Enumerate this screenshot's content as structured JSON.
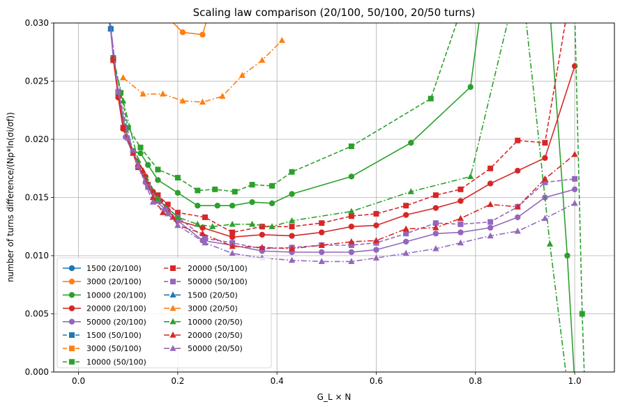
{
  "chart_data": {
    "type": "line",
    "title": "Scaling law comparison (20/100, 50/100, 20/50 turns)",
    "xlabel": "G_L × N",
    "ylabel": "number of turns difference/(Np*ln(σi/σf))",
    "xlim": [
      -0.05,
      1.08
    ],
    "ylim": [
      0,
      0.03
    ],
    "xticks": [
      "0.0",
      "0.2",
      "0.4",
      "0.6",
      "0.8",
      "1.0"
    ],
    "yticks": [
      "0.000",
      "0.005",
      "0.010",
      "0.015",
      "0.020",
      "0.025",
      "0.030"
    ],
    "grid": true,
    "legend_position": "lower-left",
    "series": [
      {
        "name": "1500 (20/100)",
        "color": "#1f77b4",
        "linestyle": "solid",
        "marker": "circle",
        "x": [
          0.055,
          0.065
        ],
        "y": [
          0.0315,
          0.0295
        ]
      },
      {
        "name": "3000 (20/100)",
        "color": "#ff7f0e",
        "linestyle": "solid",
        "marker": "circle",
        "x": [
          0.155,
          0.21,
          0.25,
          0.26
        ],
        "y": [
          0.0315,
          0.0292,
          0.029,
          0.0305
        ]
      },
      {
        "name": "10000 (20/100)",
        "color": "#2ca02c",
        "linestyle": "solid",
        "marker": "circle",
        "x": [
          0.07,
          0.08,
          0.095,
          0.11,
          0.125,
          0.14,
          0.16,
          0.2,
          0.24,
          0.28,
          0.31,
          0.35,
          0.39,
          0.43,
          0.55,
          0.67,
          0.79,
          0.81,
          0.95,
          0.985,
          1.0
        ],
        "y": [
          0.027,
          0.0238,
          0.0208,
          0.019,
          0.0188,
          0.0178,
          0.0165,
          0.0154,
          0.0143,
          0.0143,
          0.0143,
          0.0146,
          0.0145,
          0.0153,
          0.0168,
          0.0197,
          0.0245,
          0.031,
          0.031,
          0.01,
          -0.001
        ]
      },
      {
        "name": "20000 (20/100)",
        "color": "#d62728",
        "linestyle": "solid",
        "marker": "circle",
        "x": [
          0.07,
          0.08,
          0.09,
          0.11,
          0.12,
          0.135,
          0.15,
          0.165,
          0.18,
          0.2,
          0.25,
          0.31,
          0.37,
          0.43,
          0.49,
          0.55,
          0.6,
          0.66,
          0.72,
          0.77,
          0.83,
          0.885,
          0.94,
          1.0
        ],
        "y": [
          0.027,
          0.0236,
          0.0209,
          0.0189,
          0.0176,
          0.0168,
          0.0155,
          0.0147,
          0.0139,
          0.013,
          0.0124,
          0.0116,
          0.0118,
          0.0117,
          0.012,
          0.0125,
          0.0126,
          0.0135,
          0.0141,
          0.0147,
          0.0162,
          0.0173,
          0.0184,
          0.0263
        ]
      },
      {
        "name": "50000 (20/100)",
        "color": "#9467bd",
        "linestyle": "solid",
        "marker": "circle",
        "x": [
          0.06,
          0.07,
          0.08,
          0.095,
          0.12,
          0.135,
          0.155,
          0.175,
          0.2,
          0.25,
          0.31,
          0.37,
          0.43,
          0.49,
          0.55,
          0.6,
          0.66,
          0.72,
          0.77,
          0.83,
          0.885,
          0.94,
          1.0
        ],
        "y": [
          0.0315,
          0.027,
          0.0241,
          0.0202,
          0.0177,
          0.0163,
          0.0147,
          0.014,
          0.013,
          0.0113,
          0.0109,
          0.0104,
          0.0103,
          0.0103,
          0.0103,
          0.0105,
          0.0112,
          0.0119,
          0.012,
          0.0124,
          0.0133,
          0.015,
          0.0157
        ]
      },
      {
        "name": "1500 (50/100)",
        "color": "#1f77b4",
        "linestyle": "dashed",
        "marker": "square",
        "x": [
          0.055,
          0.065
        ],
        "y": [
          0.0315,
          0.0295
        ]
      },
      {
        "name": "3000 (50/100)",
        "color": "#ff7f0e",
        "linestyle": "dashed",
        "marker": "square",
        "x": [],
        "y": []
      },
      {
        "name": "10000 (50/100)",
        "color": "#2ca02c",
        "linestyle": "dashed",
        "marker": "square",
        "x": [
          0.07,
          0.085,
          0.1,
          0.125,
          0.16,
          0.2,
          0.24,
          0.275,
          0.315,
          0.35,
          0.39,
          0.43,
          0.55,
          0.71,
          0.77,
          0.95,
          1.0,
          1.015,
          1.02
        ],
        "y": [
          0.027,
          0.024,
          0.021,
          0.0193,
          0.0174,
          0.0167,
          0.0156,
          0.0157,
          0.0155,
          0.0161,
          0.016,
          0.0172,
          0.0194,
          0.0235,
          0.031,
          0.031,
          0.031,
          0.005,
          -0.001
        ]
      },
      {
        "name": "20000 (50/100)",
        "color": "#d62728",
        "linestyle": "dashed",
        "marker": "square",
        "x": [
          0.07,
          0.09,
          0.12,
          0.14,
          0.16,
          0.18,
          0.2,
          0.255,
          0.31,
          0.37,
          0.43,
          0.49,
          0.55,
          0.6,
          0.66,
          0.72,
          0.77,
          0.83,
          0.885,
          0.94,
          0.985
        ],
        "y": [
          0.0268,
          0.021,
          0.0176,
          0.0161,
          0.0152,
          0.0144,
          0.0137,
          0.0133,
          0.012,
          0.0125,
          0.0125,
          0.0128,
          0.0134,
          0.0136,
          0.0143,
          0.0152,
          0.0157,
          0.0175,
          0.0199,
          0.0197,
          0.031
        ]
      },
      {
        "name": "50000 (50/100)",
        "color": "#9467bd",
        "linestyle": "dashed",
        "marker": "square",
        "x": [
          0.06,
          0.08,
          0.11,
          0.14,
          0.16,
          0.2,
          0.255,
          0.31,
          0.37,
          0.43,
          0.49,
          0.55,
          0.6,
          0.66,
          0.72,
          0.77,
          0.83,
          0.885,
          0.94,
          1.0
        ],
        "y": [
          0.0315,
          0.0241,
          0.0189,
          0.0159,
          0.0148,
          0.0133,
          0.0115,
          0.0111,
          0.0106,
          0.0107,
          0.0109,
          0.0109,
          0.0111,
          0.0119,
          0.0128,
          0.0127,
          0.0129,
          0.0142,
          0.0163,
          0.0166
        ]
      },
      {
        "name": "1500 (20/50)",
        "color": "#1f77b4",
        "linestyle": "dashdot",
        "marker": "triangle",
        "x": [
          0.055,
          0.065
        ],
        "y": [
          0.0315,
          0.0295
        ]
      },
      {
        "name": "3000 (20/50)",
        "color": "#ff7f0e",
        "linestyle": "dashdot",
        "marker": "triangle",
        "x": [
          0.09,
          0.13,
          0.17,
          0.21,
          0.25,
          0.29,
          0.33,
          0.37,
          0.41
        ],
        "y": [
          0.0253,
          0.0239,
          0.0239,
          0.0233,
          0.0232,
          0.0237,
          0.0255,
          0.0268,
          0.0285
        ]
      },
      {
        "name": "10000 (20/50)",
        "color": "#2ca02c",
        "linestyle": "dashdot",
        "marker": "triangle",
        "x": [
          0.07,
          0.09,
          0.12,
          0.16,
          0.2,
          0.24,
          0.27,
          0.31,
          0.35,
          0.39,
          0.43,
          0.55,
          0.67,
          0.79,
          0.87,
          0.9,
          0.95,
          0.985
        ],
        "y": [
          0.027,
          0.0233,
          0.0182,
          0.0149,
          0.0133,
          0.0127,
          0.0125,
          0.0127,
          0.0127,
          0.0125,
          0.013,
          0.0138,
          0.0155,
          0.0168,
          0.031,
          0.031,
          0.011,
          -0.001
        ]
      },
      {
        "name": "20000 (20/50)",
        "color": "#d62728",
        "linestyle": "dashdot",
        "marker": "triangle",
        "x": [
          0.07,
          0.09,
          0.11,
          0.13,
          0.15,
          0.17,
          0.19,
          0.2,
          0.25,
          0.31,
          0.37,
          0.43,
          0.49,
          0.55,
          0.6,
          0.66,
          0.72,
          0.77,
          0.83,
          0.885,
          0.94,
          1.0
        ],
        "y": [
          0.027,
          0.021,
          0.0188,
          0.0173,
          0.015,
          0.0137,
          0.0133,
          0.0126,
          0.0119,
          0.0108,
          0.0107,
          0.0106,
          0.0109,
          0.0112,
          0.0113,
          0.0123,
          0.0124,
          0.0132,
          0.0144,
          0.0142,
          0.0166,
          0.0187
        ]
      },
      {
        "name": "50000 (20/50)",
        "color": "#9467bd",
        "linestyle": "dashdot",
        "marker": "triangle",
        "x": [
          0.06,
          0.08,
          0.1,
          0.12,
          0.15,
          0.18,
          0.2,
          0.255,
          0.31,
          0.37,
          0.43,
          0.49,
          0.55,
          0.6,
          0.66,
          0.72,
          0.77,
          0.83,
          0.885,
          0.94,
          1.0
        ],
        "y": [
          0.0315,
          0.0241,
          0.0201,
          0.0177,
          0.0146,
          0.0136,
          0.0126,
          0.0111,
          0.0102,
          0.0098,
          0.0096,
          0.0095,
          0.0095,
          0.0098,
          0.0102,
          0.0106,
          0.0111,
          0.0117,
          0.0121,
          0.0132,
          0.0145
        ]
      }
    ]
  }
}
